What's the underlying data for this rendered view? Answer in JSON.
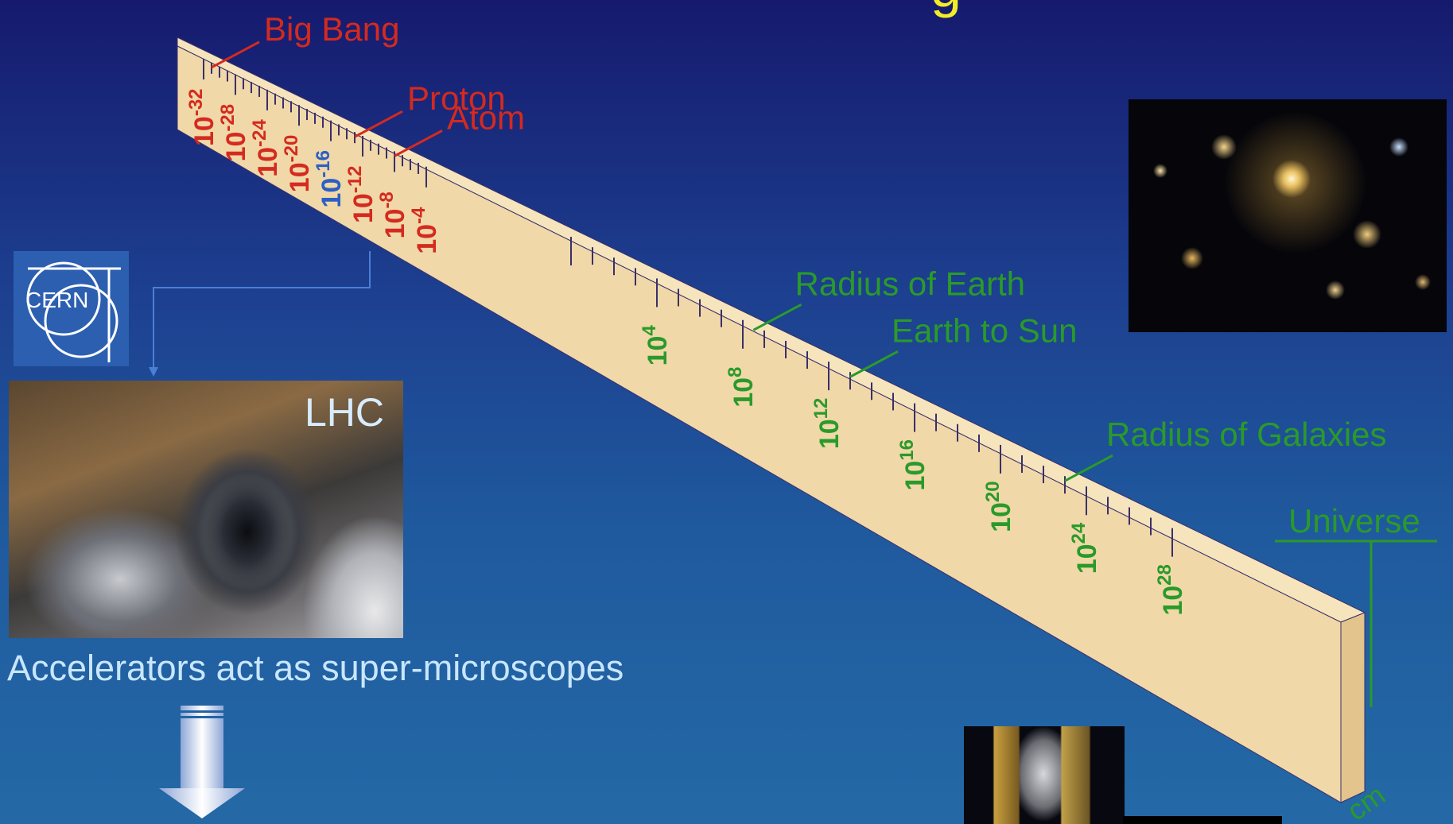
{
  "scale_title": {
    "unit": "cm",
    "small_ticks": [
      "-32",
      "-28",
      "-24",
      "-20",
      "-16",
      "-12",
      "-8",
      "-4"
    ],
    "large_ticks": [
      "4",
      "8",
      "12",
      "16",
      "20",
      "24",
      "28"
    ],
    "tick_base": "10"
  },
  "small_labels": [
    {
      "text": "Big Bang",
      "exp": -31
    },
    {
      "text": "Proton",
      "exp": -13
    },
    {
      "text": "Atom",
      "exp": -8
    }
  ],
  "large_labels": [
    {
      "text": "Radius of Earth",
      "exp": 8.5
    },
    {
      "text": "Earth to Sun",
      "exp": 13
    },
    {
      "text": "Radius of Galaxies",
      "exp": 23
    }
  ],
  "universe_label": "Universe",
  "lhc_label": "LHC",
  "cern_text": "CERN",
  "caption": "Accelerators act as super-microscopes",
  "colors": {
    "small_scale": "#d42a1f",
    "highlight_tick": "#2c5fc4",
    "large_scale": "#2a9a2a",
    "ruler_face": "#f0d8a8",
    "ruler_top": "#f6e4bd",
    "ruler_edge": "#3a2f6b",
    "caption": "#c8e6ff",
    "connector": "#4a7fd8"
  },
  "icons": {
    "down-arrow": "down-arrow-icon",
    "cern-logo": "cern-logo-icon"
  }
}
